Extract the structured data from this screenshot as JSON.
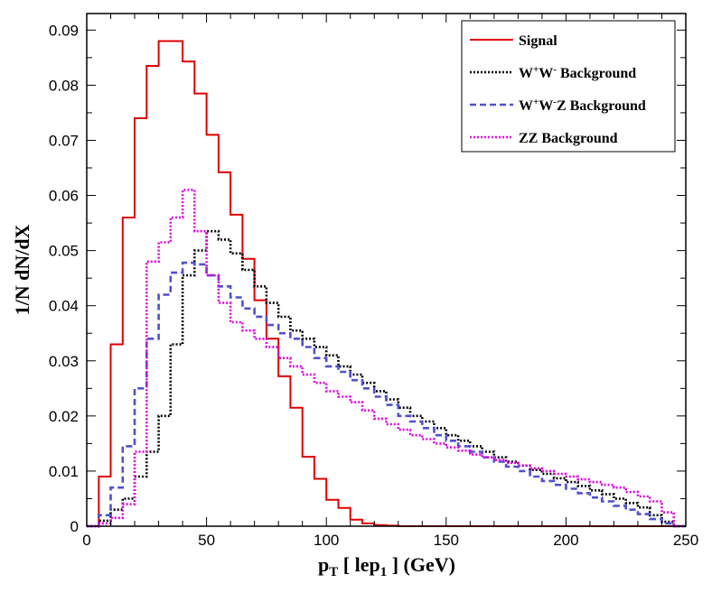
{
  "chart_data": {
    "type": "line",
    "step": true,
    "title": "",
    "xlabel_parts": [
      "p",
      "T",
      " [ lep",
      "1",
      " ] (GeV)"
    ],
    "ylabel": "1/N dN/dX",
    "xlim": [
      0,
      250
    ],
    "ylim": [
      0,
      0.093
    ],
    "xticks": [
      0,
      50,
      100,
      150,
      200,
      250
    ],
    "yticks": [
      0,
      0.01,
      0.02,
      0.03,
      0.04,
      0.05,
      0.06,
      0.07,
      0.08,
      0.09
    ],
    "ytick_labels": [
      "0",
      "0.01",
      "0.02",
      "0.03",
      "0.04",
      "0.05",
      "0.06",
      "0.07",
      "0.08",
      "0.09"
    ],
    "grid": false,
    "legend_position": "top-right",
    "bin_edges": [
      0,
      5,
      10,
      15,
      20,
      25,
      30,
      35,
      40,
      45,
      50,
      55,
      60,
      65,
      70,
      75,
      80,
      85,
      90,
      95,
      100,
      105,
      110,
      115,
      120,
      125,
      130,
      135,
      140,
      145,
      150,
      155,
      160,
      165,
      170,
      175,
      180,
      185,
      190,
      195,
      200,
      205,
      210,
      215,
      220,
      225,
      230,
      235,
      240,
      245,
      250
    ],
    "series": [
      {
        "name": "Signal",
        "label_parts": [
          {
            "t": "Signal"
          }
        ],
        "color": "#e00000",
        "dash": "solid",
        "values": [
          0,
          0.009,
          0.033,
          0.056,
          0.074,
          0.0835,
          0.088,
          0.088,
          0.0843,
          0.0785,
          0.071,
          0.0642,
          0.0565,
          0.0485,
          0.041,
          0.034,
          0.0272,
          0.0215,
          0.0126,
          0.0086,
          0.0048,
          0.0033,
          0.0012,
          0.0005,
          0.0002,
          0.0001,
          0,
          0,
          0,
          0,
          0,
          0,
          0,
          0,
          0,
          0,
          0,
          0,
          0,
          0,
          0,
          0,
          0,
          0,
          0,
          0,
          0,
          0,
          0,
          0
        ]
      },
      {
        "name": "W+W- Background",
        "label_parts": [
          {
            "t": "W"
          },
          {
            "t": "+",
            "sup": true
          },
          {
            "t": "W"
          },
          {
            "t": "-",
            "sup": true
          },
          {
            "t": " Background"
          }
        ],
        "color": "#000000",
        "dash": "dotted",
        "values": [
          0,
          0.001,
          0.003,
          0.005,
          0.009,
          0.0135,
          0.02,
          0.033,
          0.0455,
          0.05,
          0.0535,
          0.052,
          0.0495,
          0.0465,
          0.0435,
          0.0405,
          0.038,
          0.0355,
          0.034,
          0.0325,
          0.031,
          0.029,
          0.0275,
          0.026,
          0.0245,
          0.023,
          0.0215,
          0.02,
          0.019,
          0.0178,
          0.0165,
          0.0155,
          0.0145,
          0.0135,
          0.0125,
          0.0117,
          0.011,
          0.0102,
          0.0095,
          0.0087,
          0.008,
          0.0073,
          0.0065,
          0.0058,
          0.005,
          0.0042,
          0.0034,
          0.002,
          0.0008,
          0
        ]
      },
      {
        "name": "W+W-Z Background",
        "label_parts": [
          {
            "t": "W"
          },
          {
            "t": "+",
            "sup": true
          },
          {
            "t": "W"
          },
          {
            "t": "-",
            "sup": true
          },
          {
            "t": "Z Background"
          }
        ],
        "color": "#5050d0",
        "dash": "dashed",
        "values": [
          0,
          0.002,
          0.007,
          0.0145,
          0.025,
          0.034,
          0.042,
          0.046,
          0.0478,
          0.0475,
          0.0455,
          0.0435,
          0.0415,
          0.0395,
          0.038,
          0.0365,
          0.035,
          0.034,
          0.0325,
          0.0305,
          0.029,
          0.028,
          0.0265,
          0.025,
          0.0235,
          0.022,
          0.02,
          0.019,
          0.0178,
          0.0165,
          0.0155,
          0.0145,
          0.0135,
          0.0125,
          0.0117,
          0.0108,
          0.01,
          0.009,
          0.0082,
          0.0075,
          0.0068,
          0.006,
          0.0052,
          0.0045,
          0.0037,
          0.003,
          0.0022,
          0.0013,
          0.0005,
          0
        ]
      },
      {
        "name": "ZZ Background",
        "label_parts": [
          {
            "t": "ZZ Background"
          }
        ],
        "color": "#e000e0",
        "dash": "dotted",
        "values": [
          0,
          0.0005,
          0.0015,
          0.004,
          0.0135,
          0.048,
          0.0515,
          0.056,
          0.061,
          0.0535,
          0.0455,
          0.0405,
          0.037,
          0.0355,
          0.034,
          0.0325,
          0.0305,
          0.029,
          0.0275,
          0.026,
          0.0245,
          0.0235,
          0.0225,
          0.021,
          0.0195,
          0.0185,
          0.0175,
          0.0165,
          0.0158,
          0.015,
          0.0143,
          0.0137,
          0.013,
          0.0125,
          0.012,
          0.0115,
          0.011,
          0.0105,
          0.01,
          0.0095,
          0.009,
          0.0085,
          0.008,
          0.0075,
          0.007,
          0.0062,
          0.0054,
          0.0045,
          0.0025,
          0
        ]
      }
    ]
  }
}
